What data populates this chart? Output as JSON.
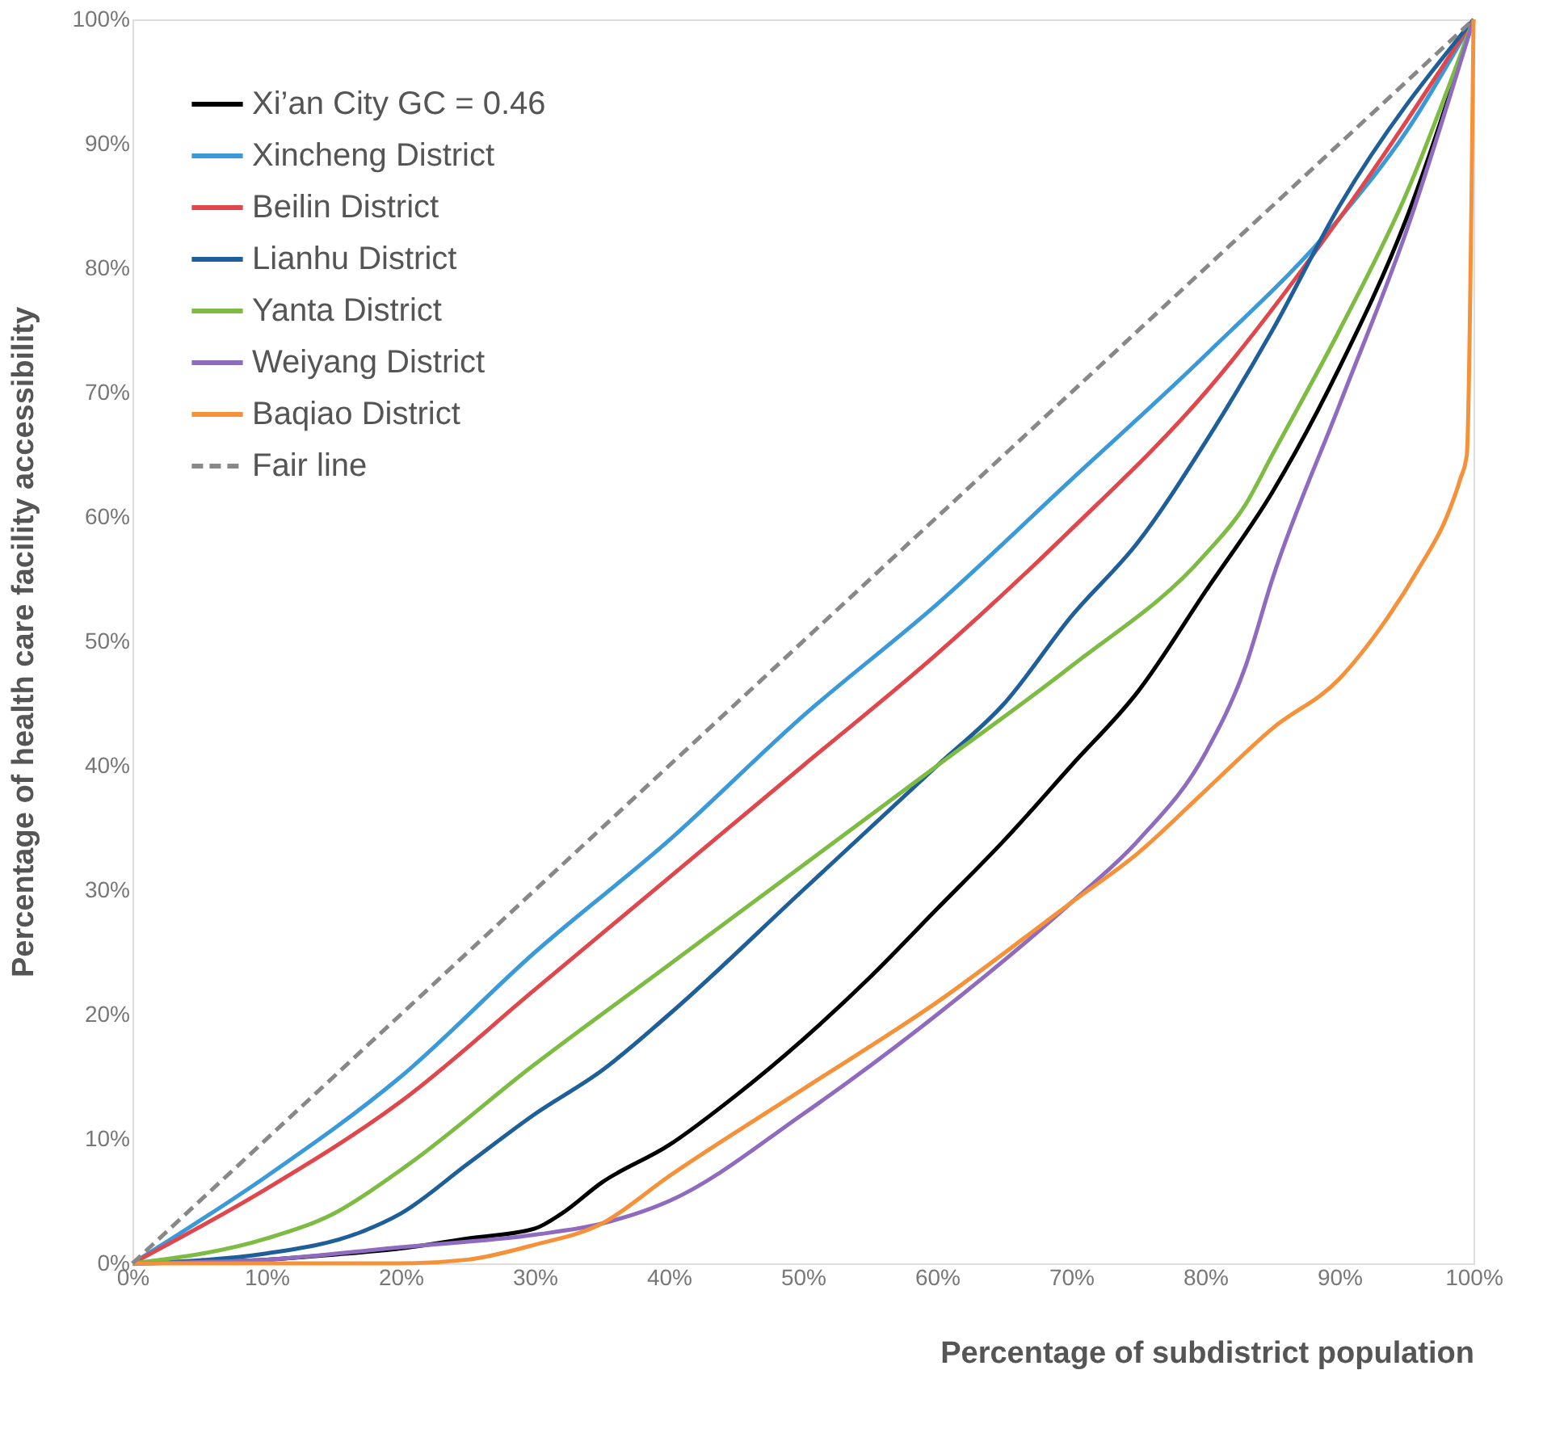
{
  "chart_data": {
    "type": "line",
    "xlabel": "Percentage of subdistrict population",
    "ylabel": "Percentage of health care facility accessibility",
    "xlim": [
      0,
      100
    ],
    "ylim": [
      0,
      100
    ],
    "xticks": [
      {
        "value": 0,
        "label": "0%"
      },
      {
        "value": 10,
        "label": "10%"
      },
      {
        "value": 20,
        "label": "20%"
      },
      {
        "value": 30,
        "label": "30%"
      },
      {
        "value": 40,
        "label": "40%"
      },
      {
        "value": 50,
        "label": "50%"
      },
      {
        "value": 60,
        "label": "60%"
      },
      {
        "value": 70,
        "label": "70%"
      },
      {
        "value": 80,
        "label": "80%"
      },
      {
        "value": 90,
        "label": "90%"
      },
      {
        "value": 100,
        "label": "100%"
      }
    ],
    "yticks": [
      {
        "value": 0,
        "label": "0%"
      },
      {
        "value": 10,
        "label": "10%"
      },
      {
        "value": 20,
        "label": "20%"
      },
      {
        "value": 30,
        "label": "30%"
      },
      {
        "value": 40,
        "label": "40%"
      },
      {
        "value": 50,
        "label": "50%"
      },
      {
        "value": 60,
        "label": "60%"
      },
      {
        "value": 70,
        "label": "70%"
      },
      {
        "value": 80,
        "label": "80%"
      },
      {
        "value": 90,
        "label": "90%"
      },
      {
        "value": 100,
        "label": "100%"
      }
    ],
    "grid": false,
    "legend": "top left",
    "marker": "none",
    "series": [
      {
        "name": "Xi’an City  GC = 0.46",
        "color": "#000000",
        "line_style": "solid",
        "x": [
          0,
          10,
          15,
          20,
          25,
          30,
          32,
          35,
          40,
          45,
          50,
          55,
          60,
          65,
          70,
          75,
          80,
          85,
          90,
          95,
          100
        ],
        "values": [
          0,
          0.3,
          0.7,
          1.2,
          2,
          2.8,
          4,
          6.5,
          9.5,
          13.5,
          18,
          23,
          28.5,
          34,
          40,
          46,
          54,
          62,
          72,
          84,
          100
        ]
      },
      {
        "name": "Xincheng District",
        "color": "#3a9ad9",
        "line_style": "solid",
        "x": [
          0,
          10,
          20,
          30,
          40,
          50,
          60,
          70,
          80,
          90,
          95,
          100
        ],
        "values": [
          0,
          7,
          15,
          25,
          34,
          44,
          53,
          63,
          73,
          84,
          91,
          100
        ]
      },
      {
        "name": "Beilin District",
        "color": "#e0474c",
        "line_style": "solid",
        "x": [
          0,
          10,
          20,
          30,
          40,
          50,
          60,
          70,
          80,
          90,
          100
        ],
        "values": [
          0,
          6,
          13,
          22,
          31,
          40,
          49,
          59,
          70,
          84,
          100
        ]
      },
      {
        "name": "Lianhu District",
        "color": "#1f5f99",
        "line_style": "solid",
        "x": [
          0,
          10,
          17,
          20,
          25,
          30,
          35,
          40,
          50,
          60,
          65,
          70,
          75,
          80,
          85,
          90,
          100
        ],
        "values": [
          0,
          0.8,
          2.5,
          4,
          8,
          12,
          15.5,
          20,
          30,
          40,
          45,
          52,
          58,
          66,
          75,
          85,
          100
        ]
      },
      {
        "name": "Yanta District",
        "color": "#7dbb42",
        "line_style": "solid",
        "x": [
          0,
          10,
          15,
          20,
          30,
          40,
          50,
          60,
          70,
          80,
          83,
          85,
          90,
          95,
          100
        ],
        "values": [
          0,
          2,
          4,
          7.5,
          16,
          24,
          32,
          40,
          48,
          57,
          61,
          65,
          75,
          86,
          100
        ]
      },
      {
        "name": "Weiyang District",
        "color": "#8e6bbf",
        "line_style": "solid",
        "x": [
          0,
          10,
          20,
          30,
          35,
          40,
          50,
          60,
          70,
          75,
          80,
          83,
          85,
          90,
          95,
          100
        ],
        "values": [
          0,
          0.3,
          1.3,
          2.3,
          3.2,
          5,
          12,
          20,
          29,
          34,
          41,
          48,
          55,
          69,
          83,
          100
        ]
      },
      {
        "name": "Baqiao District",
        "color": "#f59138",
        "line_style": "solid",
        "x": [
          0,
          20,
          25,
          30,
          35,
          40,
          50,
          60,
          70,
          75,
          80,
          85,
          90,
          93,
          96,
          98,
          99,
          99.5,
          100
        ],
        "values": [
          0,
          0,
          0.3,
          1.5,
          3.2,
          7,
          14,
          21,
          29,
          33,
          38,
          43,
          47,
          51,
          56,
          60,
          63,
          65,
          100
        ]
      },
      {
        "name": "Fair line",
        "color": "#888888",
        "line_style": "dashed",
        "x": [
          0,
          100
        ],
        "values": [
          0,
          100
        ]
      }
    ]
  }
}
